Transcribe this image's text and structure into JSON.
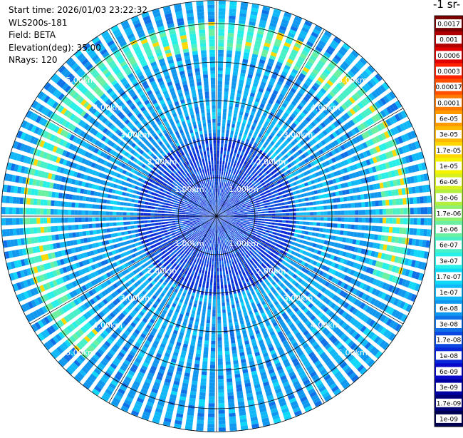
{
  "info": {
    "start_time": "Start time: 2026/01/03 23:22:32",
    "instrument": "WLS200s-181",
    "field": "Field: BETA",
    "elevation": "Elevation(deg): 35.00",
    "nrays": "NRays: 120"
  },
  "colorbar": {
    "units_title": "-1 sr-",
    "labels": [
      "0.0017",
      "0.001",
      "0.0006",
      "0.0003",
      "0.00017",
      "0.0001",
      "6e-05",
      "3e-05",
      "1.7e-05",
      "1e-05",
      "6e-06",
      "3e-06",
      "1.7e-06",
      "1e-06",
      "6e-07",
      "3e-07",
      "1.7e-07",
      "1e-07",
      "6e-08",
      "3e-08",
      "1.7e-08",
      "1e-08",
      "6e-09",
      "3e-09",
      "1.7e-09",
      "1e-09"
    ],
    "colors": [
      "#7a0000",
      "#b00000",
      "#e00000",
      "#ff2000",
      "#ff5000",
      "#ff7a00",
      "#ff9a00",
      "#ffba00",
      "#ffd800",
      "#f4f400",
      "#d8f020",
      "#b4ee40",
      "#8ef070",
      "#6af0a0",
      "#48f0c8",
      "#28f0e8",
      "#10d8f8",
      "#10b8f8",
      "#1098f0",
      "#1070e8",
      "#0a48e0",
      "#0828d8",
      "#0808c8",
      "#0000a0",
      "#000078",
      "#000050"
    ]
  },
  "chart_data": {
    "type": "ppi-scan",
    "field": "BETA",
    "elevation_deg": 35.0,
    "nrays": 120,
    "range_rings_km": [
      1,
      2,
      3,
      4,
      5
    ],
    "ring_labels": [
      "1.00km",
      "2.00km",
      "3.00km",
      "4.00km",
      "5.00km"
    ],
    "max_range_km": 5.6,
    "background_value": 1e-07,
    "enhanced_band": {
      "range_km": [
        4.3,
        5.0
      ],
      "azimuth_deg": [
        220,
        470
      ],
      "peak_value": 1.7e-05
    }
  }
}
